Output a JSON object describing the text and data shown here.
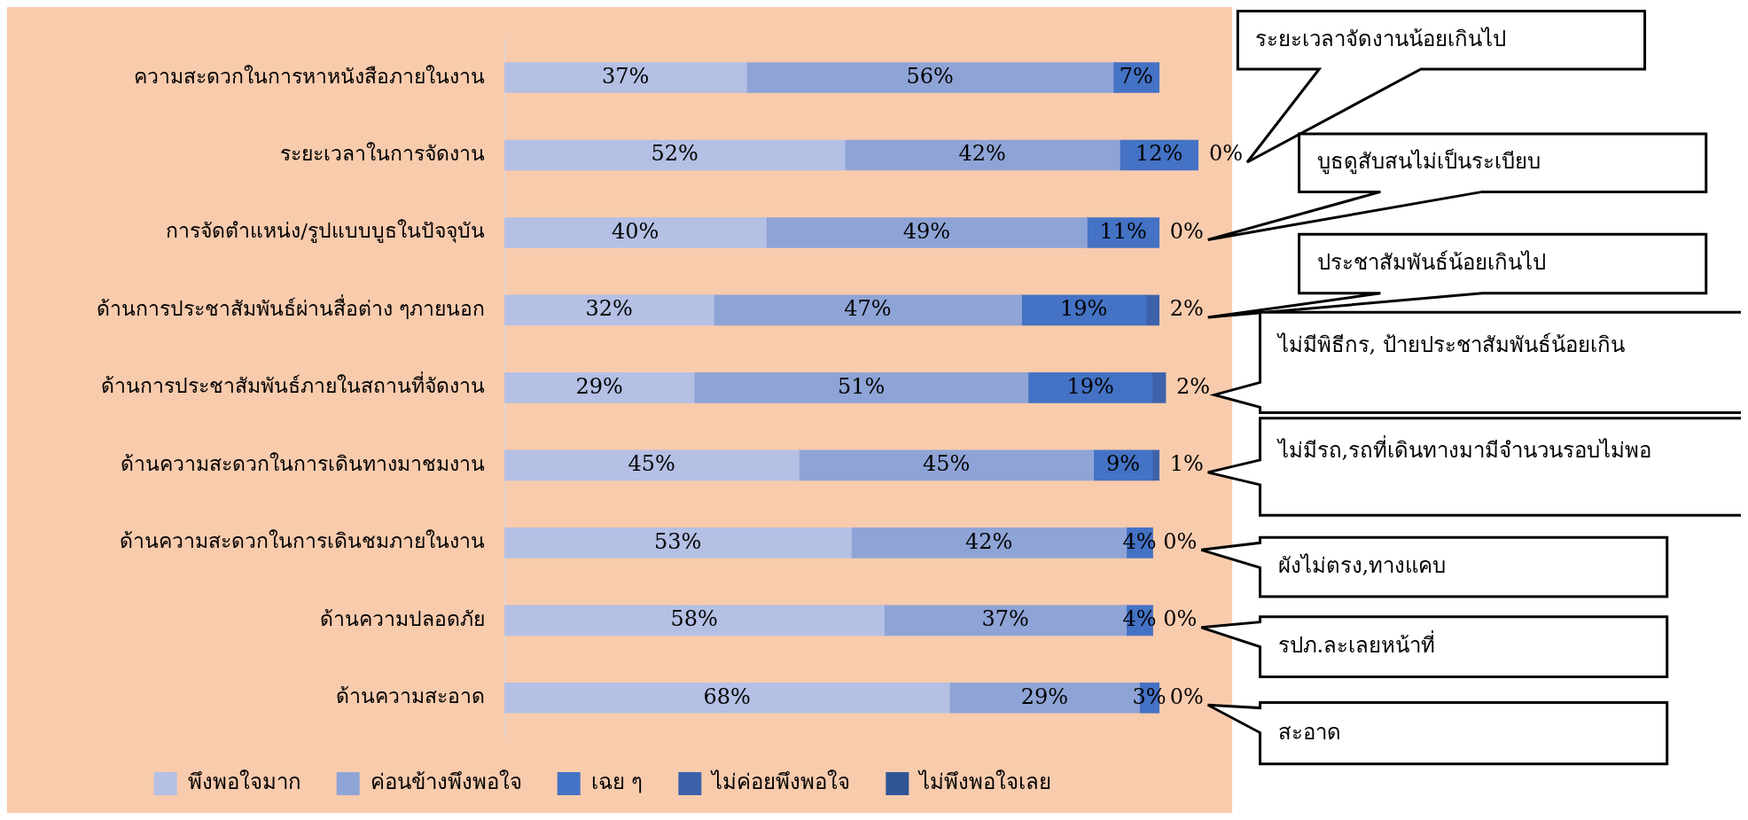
{
  "chart_data": {
    "type": "bar",
    "orientation": "horizontal",
    "stacked": true,
    "categories": [
      "ความสะดวกในการหาหนังสือภายในงาน",
      "ระยะเวลาในการจัดงาน",
      "การจัดตำแหน่ง/รูปแบบบูธในปัจจุบัน",
      "ด้านการประชาสัมพันธ์ผ่านสื่อต่าง ๆภายนอก",
      "ด้านการประชาสัมพันธ์ภายในสถานที่จัดงาน",
      "ด้านความสะดวกในการเดินทางมาชมงาน",
      "ด้านความสะดวกในการเดินชมภายในงาน",
      "ด้านความปลอดภัย",
      "ด้านความสะอาด"
    ],
    "series": [
      {
        "name": "พึงพอใจมาก",
        "color": "#b4c0e4",
        "values": [
          37,
          52,
          40,
          32,
          29,
          45,
          53,
          58,
          68
        ],
        "value_labels": [
          "37%",
          "52%",
          "40%",
          "32%",
          "29%",
          "45%",
          "53%",
          "58%",
          "68%"
        ]
      },
      {
        "name": "ค่อนข้างพึงพอใจ",
        "color": "#8fa4d6",
        "values": [
          56,
          42,
          49,
          47,
          51,
          45,
          42,
          37,
          29
        ],
        "value_labels": [
          "56%",
          "42%",
          "49%",
          "47%",
          "51%",
          "45%",
          "42%",
          "37%",
          "29%"
        ]
      },
      {
        "name": "เฉย ๆ",
        "color": "#4472c4",
        "values": [
          7,
          12,
          11,
          19,
          19,
          9,
          4,
          4,
          3
        ],
        "value_labels": [
          "7%",
          "12%",
          "11%",
          "19%",
          "19%",
          "9%",
          "4%",
          "4%",
          "3%"
        ]
      },
      {
        "name": "ไม่ค่อยพึงพอใจ",
        "color": "#3d62aa",
        "values": [
          null,
          0,
          0,
          2,
          2,
          1,
          0,
          0,
          0
        ],
        "value_labels": [
          null,
          "0%",
          "0%",
          "2%",
          "2%",
          "1%",
          "0%",
          "0%",
          "0%"
        ]
      },
      {
        "name": "ไม่พึงพอใจเลย",
        "color": "#2f5597",
        "values": [
          null,
          null,
          null,
          null,
          null,
          null,
          null,
          null,
          null
        ]
      }
    ],
    "xlim": [
      0,
      106
    ],
    "tick_labels": "y",
    "legend": "bottom",
    "annotations": [
      "ระยะเวลาจัดงานน้อยเกินไป",
      "บูธดูสับสนไม่เป็นระเบียบ",
      "ประชาสัมพันธ์น้อยเกินไป",
      "ไม่มีพิธีกร, ป้ายประชาสัมพันธ์น้อยเกิน",
      "ไม่มีรถ,รถที่เดินทางมามีจำนวนรอบไม่พอ",
      "ผังไม่ตรง,ทางแคบ",
      "รปภ.ละเลยหน้าที่",
      "สะอาด"
    ]
  }
}
